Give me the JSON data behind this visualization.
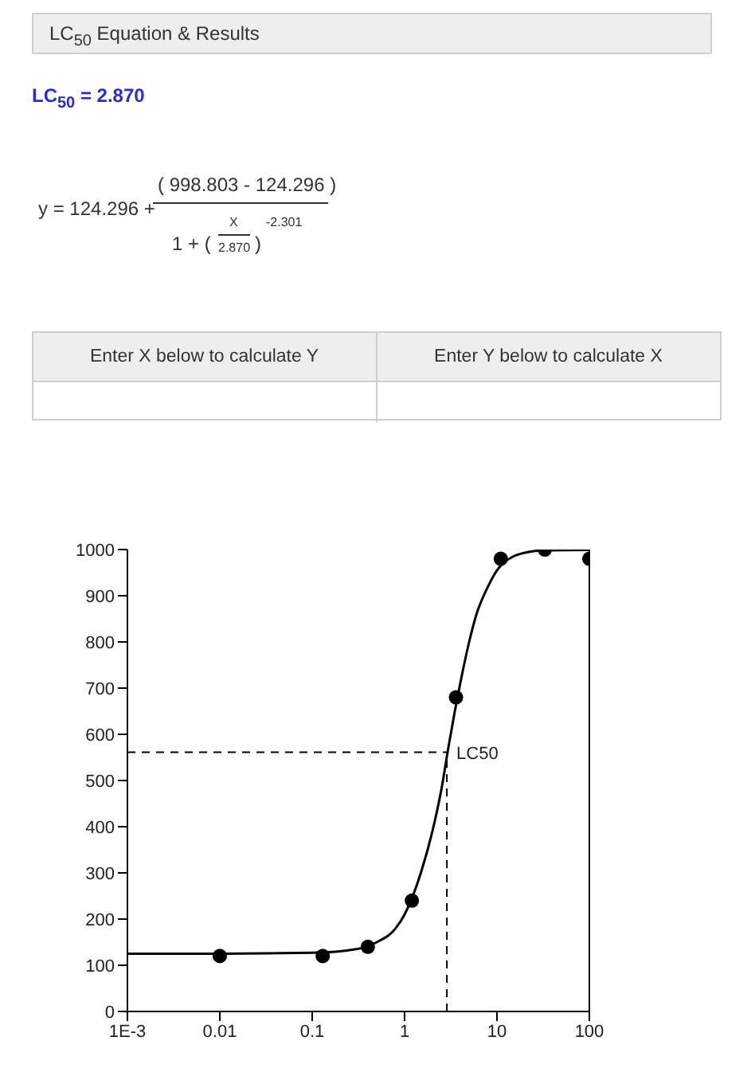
{
  "chart_data": {
    "type": "scatter",
    "title": "LC$_{50}$ Equation & Results",
    "annotations": [
      "LC$_{50}$ = 2.870",
      "y = 124.296 +",
      "( 998.803 - 124.296 )",
      "1 + (",
      "X",
      "2.870",
      ")",
      "-2.301",
      "Enter X below to calculate Y",
      "Enter Y below to calculate X"
    ],
    "series": [
      {
        "color": "#000000",
        "marker": "circle",
        "x": [
          0.01,
          0.13,
          0.4,
          1.2,
          3.6,
          11,
          33,
          100
        ],
        "values": [
          120,
          120,
          140,
          240,
          680,
          980,
          1000,
          980
        ]
      },
      {
        "type": "line",
        "color": "#000000",
        "marker": "none",
        "x": [
          0.001,
          0.01,
          0.1,
          0.3,
          0.5,
          0.8,
          1,
          1.5,
          2,
          2.5,
          3,
          3.5,
          4,
          5,
          6,
          8,
          10,
          15,
          20,
          30,
          100
        ],
        "values": [
          125,
          125,
          127,
          135,
          150,
          180,
          210,
          300,
          390,
          480,
          575,
          650,
          710,
          800,
          860,
          920,
          955,
          985,
          993,
          998,
          999
        ]
      }
    ],
    "log": "x",
    "xlim": [
      0.001,
      100
    ],
    "xticks": [
      {
        "value": 0.001,
        "label": "1E-3"
      },
      0.01,
      0.1,
      1,
      10,
      100
    ],
    "ylim": [
      0,
      1000
    ],
    "yticks": [
      0,
      100,
      200,
      300,
      400,
      500,
      600,
      700,
      800,
      900,
      1000
    ],
    "ref_lines": [
      {
        "axis": "x",
        "value": 2.87,
        "label": "LC50",
        "line_style": "dashed",
        "color": "#000000"
      },
      {
        "axis": "y",
        "value": 561,
        "label": null,
        "line_style": "dashed",
        "color": "#000000"
      }
    ],
    "legend": false
  }
}
